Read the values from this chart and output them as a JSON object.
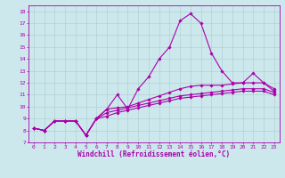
{
  "xlabel": "Windchill (Refroidissement éolien,°C)",
  "ylabel": "",
  "bg_color": "#cce8ec",
  "line_color": "#aa00aa",
  "xlim": [
    -0.5,
    23.5
  ],
  "ylim": [
    7,
    18.5
  ],
  "xticks": [
    0,
    1,
    2,
    3,
    4,
    5,
    6,
    7,
    8,
    9,
    10,
    11,
    12,
    13,
    14,
    15,
    16,
    17,
    18,
    19,
    20,
    21,
    22,
    23
  ],
  "yticks": [
    7,
    8,
    9,
    10,
    11,
    12,
    13,
    14,
    15,
    16,
    17,
    18
  ],
  "series": [
    [
      8.2,
      8.0,
      8.8,
      8.8,
      8.8,
      7.6,
      9.0,
      9.8,
      11.0,
      9.8,
      11.5,
      12.5,
      14.0,
      15.0,
      17.2,
      17.8,
      17.0,
      14.5,
      13.0,
      12.0,
      12.0,
      12.8,
      12.0,
      11.3
    ],
    [
      8.2,
      8.0,
      8.8,
      8.8,
      8.8,
      7.6,
      9.0,
      9.8,
      9.9,
      10.0,
      10.3,
      10.6,
      10.9,
      11.2,
      11.5,
      11.7,
      11.8,
      11.8,
      11.8,
      11.9,
      12.0,
      12.0,
      12.0,
      11.5
    ],
    [
      8.2,
      8.0,
      8.8,
      8.8,
      8.8,
      7.6,
      9.0,
      9.5,
      9.7,
      9.9,
      10.1,
      10.3,
      10.5,
      10.7,
      10.9,
      11.0,
      11.1,
      11.2,
      11.3,
      11.4,
      11.5,
      11.5,
      11.5,
      11.2
    ],
    [
      8.2,
      8.0,
      8.8,
      8.8,
      8.8,
      7.6,
      9.0,
      9.2,
      9.5,
      9.7,
      9.9,
      10.1,
      10.3,
      10.5,
      10.7,
      10.8,
      10.9,
      11.0,
      11.1,
      11.2,
      11.3,
      11.3,
      11.3,
      11.0
    ]
  ],
  "marker": "D",
  "marker_size": 1.8,
  "line_width": 0.8,
  "xlabel_fontsize": 5.5,
  "tick_fontsize": 4.5,
  "grid_color": "#aacccc",
  "grid_linewidth": 0.4,
  "spine_linewidth": 0.6
}
